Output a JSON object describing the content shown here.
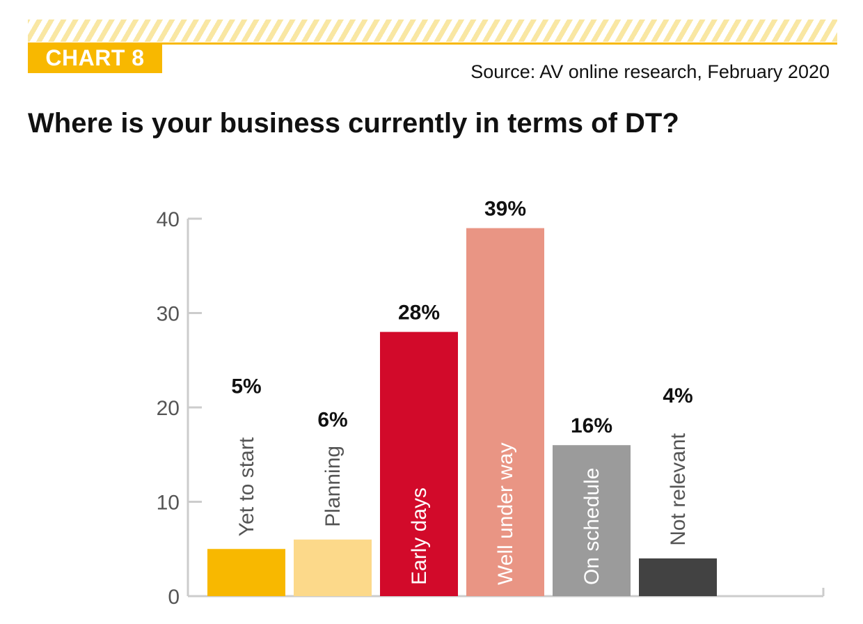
{
  "header": {
    "badge": "CHART 8",
    "source": "Source: AV online research, February 2020",
    "title": "Where is your business currently in terms of DT?"
  },
  "colors": {
    "accent": "#f8b800",
    "hatch": "#f9e7a3",
    "axis": "#cccccc"
  },
  "chart_data": {
    "type": "bar",
    "title": "Where is your business currently in terms of DT?",
    "xlabel": "",
    "ylabel": "",
    "ylim": [
      0,
      40
    ],
    "yticks": [
      0,
      10,
      20,
      30,
      40
    ],
    "grid": false,
    "categories": [
      "Yet to start",
      "Planning",
      "Early days",
      "Well under way",
      "On schedule",
      "Not relevant"
    ],
    "values": [
      5,
      6,
      28,
      39,
      16,
      4
    ],
    "value_labels": [
      "5%",
      "6%",
      "28%",
      "39%",
      "16%",
      "4%"
    ],
    "bar_colors": [
      "#f8b800",
      "#fcd98a",
      "#d20a2a",
      "#e99584",
      "#9b9b9b",
      "#424242"
    ],
    "category_label_colors": [
      "#555555",
      "#555555",
      "#ffffff",
      "#ffffff",
      "#ffffff",
      "#555555"
    ]
  }
}
